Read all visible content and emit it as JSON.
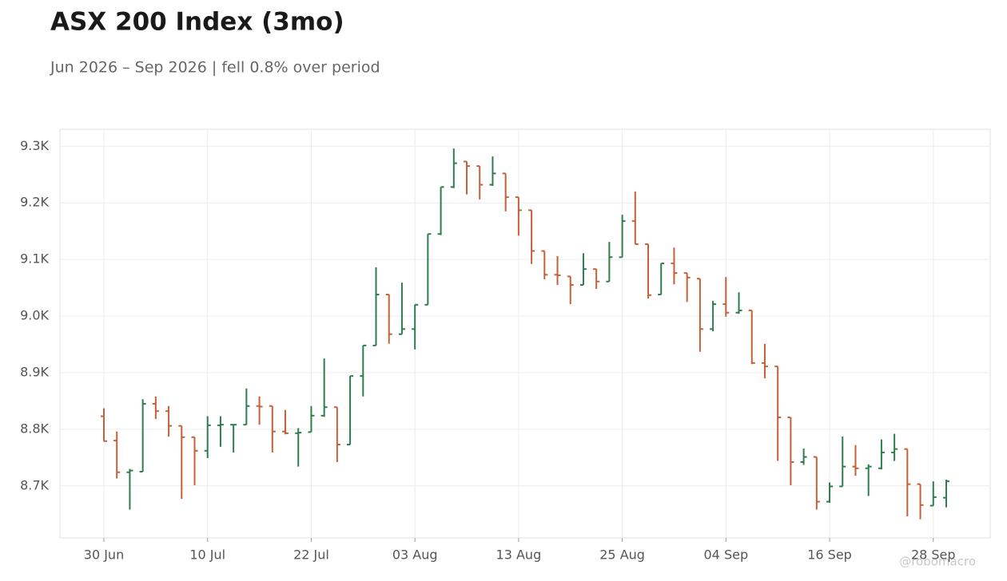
{
  "chart_data": {
    "type": "ohlc",
    "title": "ASX 200 Index (3mo)",
    "subtitle": "Jun 2026 – Sep 2026 | fell 0.8% over period",
    "watermark": "@robomacro",
    "categories": [
      "30 Jun",
      null,
      null,
      null,
      null,
      null,
      null,
      null,
      "10 Jul",
      null,
      null,
      null,
      null,
      null,
      null,
      null,
      "22 Jul",
      null,
      null,
      null,
      null,
      null,
      null,
      null,
      "03 Aug",
      null,
      null,
      null,
      null,
      null,
      null,
      null,
      "13 Aug",
      null,
      null,
      null,
      null,
      null,
      null,
      null,
      "25 Aug",
      null,
      null,
      null,
      null,
      null,
      null,
      null,
      "04 Sep",
      null,
      null,
      null,
      null,
      null,
      null,
      null,
      "16 Sep",
      null,
      null,
      null,
      null,
      null,
      null,
      null,
      "28 Sep",
      null
    ],
    "open": [
      8823,
      8780,
      8724,
      8725,
      8845,
      8832,
      8806,
      8786,
      8762,
      8807,
      8808,
      8808,
      8841,
      8841,
      8796,
      8793,
      8795,
      8824,
      8839,
      8773,
      8894,
      8948,
      9038,
      8968,
      8977,
      9020,
      9145,
      9228,
      9273,
      9265,
      9232,
      9252,
      9210,
      9187,
      9115,
      9073,
      9070,
      9055,
      9083,
      9061,
      9104,
      9168,
      9127,
      9038,
      9093,
      9076,
      9066,
      8977,
      9021,
      9006,
      9010,
      8917,
      8911,
      8821,
      8742,
      8751,
      8672,
      8699,
      8734,
      8731,
      8731,
      8759,
      8765,
      8703,
      8665,
      8679
    ],
    "high": [
      8837,
      8796,
      8730,
      8853,
      8858,
      8841,
      8806,
      8786,
      8823,
      8823,
      8808,
      8872,
      8858,
      8841,
      8834,
      8802,
      8841,
      8925,
      8839,
      8894,
      8948,
      9086,
      9038,
      9059,
      9020,
      9145,
      9228,
      9296,
      9273,
      9265,
      9282,
      9252,
      9210,
      9187,
      9115,
      9106,
      9070,
      9111,
      9083,
      9131,
      9179,
      9220,
      9127,
      9093,
      9121,
      9076,
      9066,
      9027,
      9069,
      9042,
      9010,
      8951,
      8911,
      8821,
      8766,
      8751,
      8706,
      8787,
      8772,
      8738,
      8782,
      8792,
      8765,
      8703,
      8708,
      8711
    ],
    "low": [
      8779,
      8713,
      8658,
      8725,
      8818,
      8787,
      8677,
      8701,
      8749,
      8769,
      8759,
      8808,
      8808,
      8759,
      8791,
      8734,
      8795,
      8822,
      8742,
      8773,
      8858,
      8948,
      8951,
      8968,
      8941,
      9020,
      9143,
      9226,
      9215,
      9206,
      9230,
      9185,
      9142,
      9092,
      9065,
      9055,
      9021,
      9055,
      9048,
      9061,
      9104,
      9127,
      9031,
      9038,
      9056,
      9025,
      8937,
      8973,
      8999,
      9004,
      8915,
      8890,
      8744,
      8701,
      8737,
      8658,
      8670,
      8699,
      8718,
      8682,
      8729,
      8744,
      8646,
      8641,
      8665,
      8662
    ],
    "close": [
      8779,
      8724,
      8727,
      8845,
      8832,
      8806,
      8786,
      8762,
      8807,
      8808,
      8808,
      8841,
      8840,
      8796,
      8793,
      8794,
      8824,
      8839,
      8773,
      8894,
      8948,
      9038,
      8968,
      8977,
      9020,
      9145,
      9228,
      9270,
      9265,
      9232,
      9252,
      9210,
      9187,
      9115,
      9073,
      9072,
      9055,
      9083,
      9061,
      9104,
      9168,
      9127,
      9037,
      9093,
      9076,
      9068,
      8977,
      9021,
      9006,
      9010,
      8917,
      8911,
      8821,
      8742,
      8751,
      8672,
      8699,
      8734,
      8731,
      8734,
      8759,
      8765,
      8703,
      8666,
      8680,
      8708
    ],
    "up_color": "#2e7d4f",
    "down_color": "#c4603a",
    "ylim": [
      8608,
      9330
    ],
    "yticks": [
      {
        "value": 8700,
        "label": "8.7K"
      },
      {
        "value": 8800,
        "label": "8.8K"
      },
      {
        "value": 8900,
        "label": "8.9K"
      },
      {
        "value": 9000,
        "label": "9.0K"
      },
      {
        "value": 9100,
        "label": "9.1K"
      },
      {
        "value": 9200,
        "label": "9.2K"
      },
      {
        "value": 9300,
        "label": "9.3K"
      }
    ],
    "grid": true
  }
}
